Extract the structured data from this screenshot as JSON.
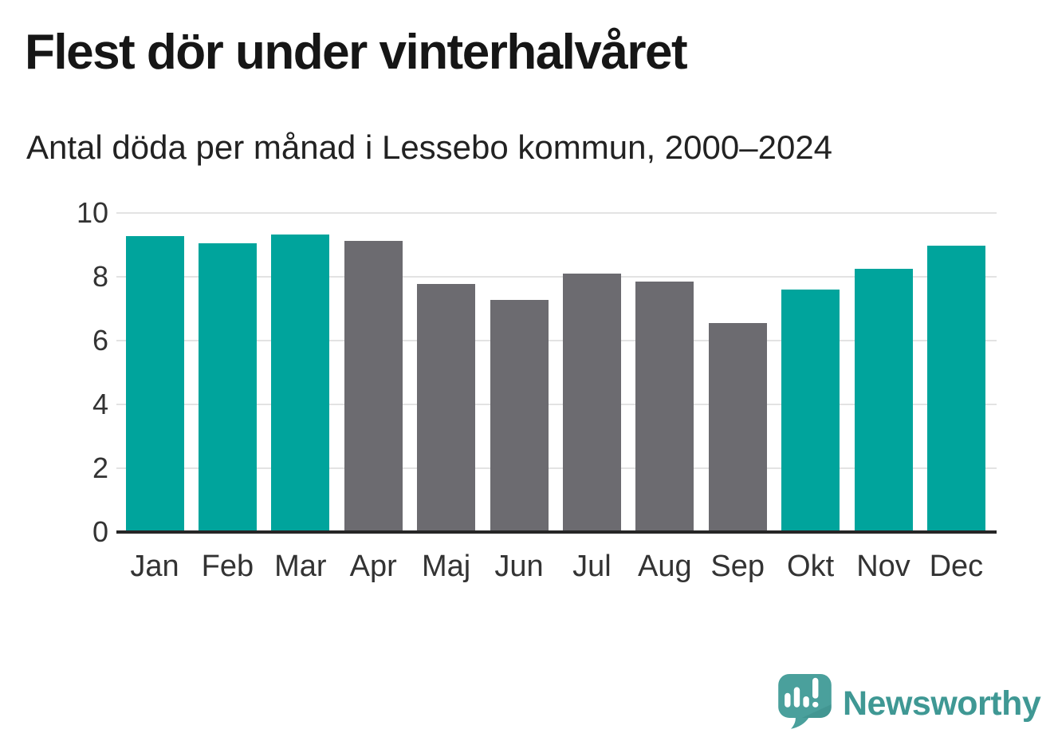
{
  "header": {
    "title": "Flest dör under vinterhalvåret",
    "subtitle": "Antal döda per månad i Lessebo kommun, 2000–2024"
  },
  "chart_data": {
    "type": "bar",
    "title": "Flest dör under vinterhalvåret",
    "subtitle": "Antal döda per månad i Lessebo kommun, 2000–2024",
    "categories": [
      "Jan",
      "Feb",
      "Mar",
      "Apr",
      "Maj",
      "Jun",
      "Jul",
      "Aug",
      "Sep",
      "Okt",
      "Nov",
      "Dec"
    ],
    "values": [
      9.28,
      9.05,
      9.32,
      9.12,
      7.78,
      7.28,
      8.1,
      7.86,
      6.55,
      7.6,
      8.24,
      8.98
    ],
    "bar_color_keys": [
      "teal",
      "teal",
      "teal",
      "gray",
      "gray",
      "gray",
      "gray",
      "gray",
      "gray",
      "teal",
      "teal",
      "teal"
    ],
    "colors": {
      "teal": "#00a49c",
      "gray": "#6c6b70"
    },
    "xlabel": "",
    "ylabel": "",
    "ylim": [
      0,
      10
    ],
    "yticks": [
      0,
      2,
      4,
      6,
      8,
      10
    ],
    "grid": "horizontal",
    "gridline_color": "#e3e3e3",
    "axis_line_color": "#262626",
    "tick_label_color": "#333333",
    "legend": "none"
  },
  "footer": {
    "brand": "Newsworthy",
    "brand_color": "#3f9894",
    "logo_icon": "speech-bubble-bar-chart-icon",
    "logo_icon_color": "#4aa09c",
    "logo_icon_shade_color": "#3d8e8b"
  }
}
